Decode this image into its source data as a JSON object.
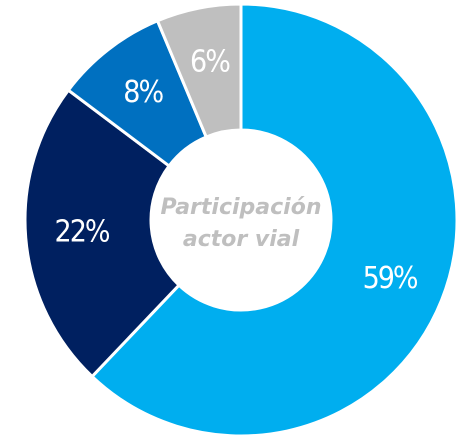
{
  "chart_data": {
    "type": "donut",
    "center_label": [
      "Participación",
      "actor vial"
    ],
    "values": [
      59,
      22,
      8,
      6
    ],
    "value_labels": [
      "59%",
      "22%",
      "8%",
      "6%"
    ],
    "colors": [
      "#00aeef",
      "#002060",
      "#0070c0",
      "#bfbfbf"
    ]
  }
}
